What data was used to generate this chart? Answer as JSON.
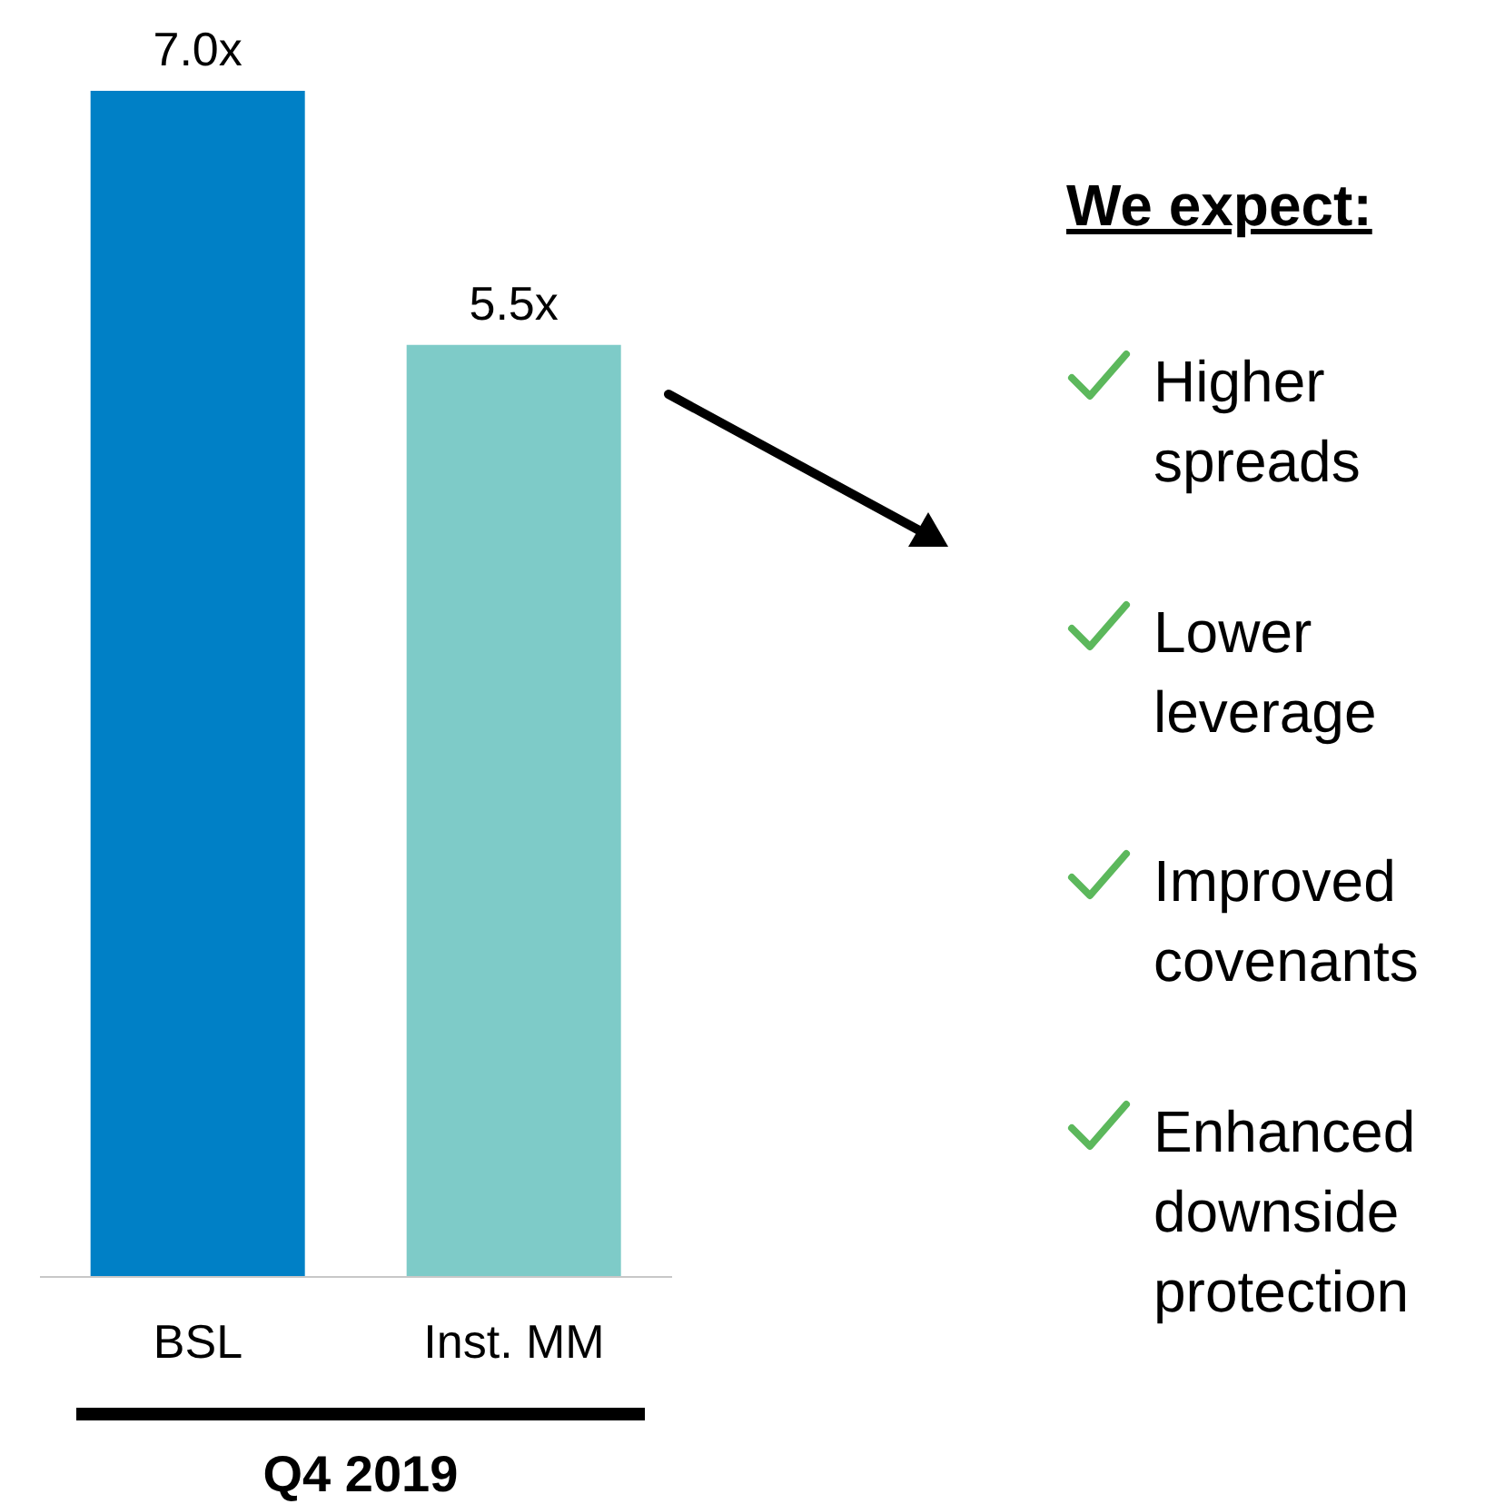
{
  "chart_data": {
    "type": "bar",
    "categories": [
      "BSL",
      "Inst. MM"
    ],
    "values": [
      7.0,
      5.5
    ],
    "colors": [
      "#0080c6",
      "#7ecbc8"
    ],
    "value_labels": [
      "7.0x",
      "5.5x"
    ],
    "xlabel": "Q4 2019",
    "legend": false,
    "grid": false,
    "annotations": [
      "We expect:",
      "Higher spreads",
      "Lower leverage",
      "Improved covenants",
      "Enhanced downside protection"
    ]
  }
}
